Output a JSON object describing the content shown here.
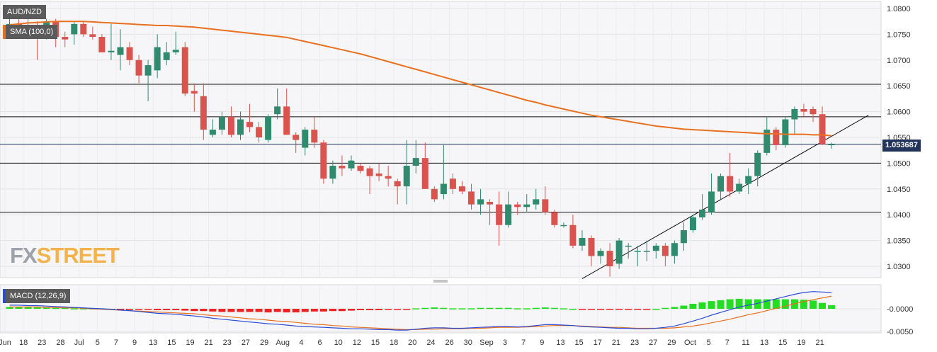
{
  "labels": {
    "symbol": "AUD/NZD",
    "sma_legend": "SMA (100,0)",
    "macd_legend": "MACD (12,26,9)",
    "last_price": "1.053687",
    "watermark_a": "FX",
    "watermark_b": "STREET"
  },
  "colors": {
    "up": "#2f8a6e",
    "down": "#d9534f",
    "sma": "#e8701f",
    "macd_line": "#2c4cd6",
    "signal_line": "#e8701f",
    "hist_pos": "#22dd22",
    "hist_neg": "#ee2222",
    "label_bg": "#5a5a5a",
    "price_tag_bg": "#22345c"
  },
  "chart_data": [
    {
      "type": "candlestick",
      "symbol": "AUD/NZD",
      "ylim": [
        1.0265,
        1.0805
      ],
      "yticks": [
        "1.0800",
        "1.0750",
        "1.0700",
        "1.0650",
        "1.0600",
        "1.0550",
        "1.0500",
        "1.0450",
        "1.0400",
        "1.0350",
        "1.0300"
      ],
      "xticks": [
        "Jun",
        "18",
        "23",
        "28",
        "Jul",
        "5",
        "7",
        "9",
        "13",
        "15",
        "19",
        "21",
        "23",
        "27",
        "29",
        "Aug",
        "4",
        "6",
        "10",
        "12",
        "15",
        "18",
        "20",
        "24",
        "26",
        "30",
        "Sep",
        "3",
        "7",
        "9",
        "13",
        "15",
        "17",
        "21",
        "23",
        "27",
        "29",
        "Oct",
        "5",
        "7",
        "11",
        "13",
        "15",
        "19",
        "21"
      ],
      "horizontal_levels": [
        1.0653,
        1.059,
        1.05,
        1.0405
      ],
      "last_price": 1.053687,
      "trendline": [
        {
          "i": 62,
          "v": 1.0276
        },
        {
          "i": 93,
          "v": 1.0593
        }
      ],
      "candles": [
        [
          1.0768,
          1.0795,
          1.076,
          1.077
        ],
        [
          1.077,
          1.0795,
          1.0755,
          1.0765
        ],
        [
          1.0765,
          1.0785,
          1.074,
          1.0755
        ],
        [
          1.0755,
          1.0775,
          1.07,
          1.075
        ],
        [
          1.075,
          1.078,
          1.074,
          1.0775
        ],
        [
          1.0775,
          1.078,
          1.0725,
          1.0745
        ],
        [
          1.0745,
          1.0755,
          1.0725,
          1.074
        ],
        [
          1.075,
          1.0775,
          1.073,
          1.077
        ],
        [
          1.077,
          1.0775,
          1.0745,
          1.075
        ],
        [
          1.075,
          1.0765,
          1.074,
          1.0745
        ],
        [
          1.0745,
          1.075,
          1.0715,
          1.0715
        ],
        [
          1.0715,
          1.077,
          1.07,
          1.0718
        ],
        [
          1.071,
          1.076,
          1.068,
          1.0725
        ],
        [
          1.0725,
          1.0735,
          1.069,
          1.07
        ],
        [
          1.07,
          1.071,
          1.0655,
          1.067
        ],
        [
          1.067,
          1.07,
          1.062,
          1.069
        ],
        [
          1.068,
          1.075,
          1.0665,
          1.0725
        ],
        [
          1.07,
          1.0735,
          1.069,
          1.0715
        ],
        [
          1.0715,
          1.0755,
          1.071,
          1.072
        ],
        [
          1.0725,
          1.0735,
          1.063,
          1.0635
        ],
        [
          1.064,
          1.0655,
          1.06,
          1.0635
        ],
        [
          1.063,
          1.0655,
          1.0545,
          1.0565
        ],
        [
          1.0555,
          1.0585,
          1.055,
          1.0565
        ],
        [
          1.0565,
          1.06,
          1.0555,
          1.059
        ],
        [
          1.059,
          1.061,
          1.055,
          1.0555
        ],
        [
          1.0555,
          1.06,
          1.0545,
          1.0585
        ],
        [
          1.058,
          1.0615,
          1.056,
          1.057
        ],
        [
          1.057,
          1.058,
          1.054,
          1.055
        ],
        [
          1.0545,
          1.0595,
          1.054,
          1.059
        ],
        [
          1.0595,
          1.0645,
          1.0585,
          1.061
        ],
        [
          1.061,
          1.0645,
          1.0555,
          1.0555
        ],
        [
          1.0555,
          1.056,
          1.052,
          1.0545
        ],
        [
          1.053,
          1.057,
          1.0515,
          1.0565
        ],
        [
          1.0565,
          1.059,
          1.053,
          1.054
        ],
        [
          1.054,
          1.0545,
          1.046,
          1.047
        ],
        [
          1.047,
          1.0505,
          1.046,
          1.0495
        ],
        [
          1.0495,
          1.0515,
          1.0475,
          1.049
        ],
        [
          1.049,
          1.0515,
          1.0485,
          1.0505
        ],
        [
          1.0495,
          1.05,
          1.048,
          1.0485
        ],
        [
          1.049,
          1.0495,
          1.044,
          1.0475
        ],
        [
          1.048,
          1.05,
          1.0465,
          1.0475
        ],
        [
          1.0475,
          1.0495,
          1.0455,
          1.047
        ],
        [
          1.0465,
          1.047,
          1.042,
          1.0455
        ],
        [
          1.0455,
          1.0545,
          1.042,
          1.0495
        ],
        [
          1.0495,
          1.0545,
          1.048,
          1.051
        ],
        [
          1.051,
          1.054,
          1.045,
          1.045
        ],
        [
          1.045,
          1.0455,
          1.0425,
          1.043
        ],
        [
          1.044,
          1.0535,
          1.043,
          1.046
        ],
        [
          1.047,
          1.048,
          1.044,
          1.045
        ],
        [
          1.0455,
          1.0465,
          1.044,
          1.0445
        ],
        [
          1.0445,
          1.046,
          1.041,
          1.042
        ],
        [
          1.042,
          1.045,
          1.04,
          1.043
        ],
        [
          1.0425,
          1.043,
          1.038,
          1.042
        ],
        [
          1.042,
          1.0445,
          1.034,
          1.038
        ],
        [
          1.038,
          1.0445,
          1.0375,
          1.042
        ],
        [
          1.042,
          1.0425,
          1.04,
          1.0415
        ],
        [
          1.0415,
          1.044,
          1.0405,
          1.042
        ],
        [
          1.042,
          1.045,
          1.041,
          1.043
        ],
        [
          1.043,
          1.0455,
          1.04,
          1.0405
        ],
        [
          1.0405,
          1.041,
          1.0375,
          1.038
        ],
        [
          1.038,
          1.0385,
          1.0375,
          1.038
        ],
        [
          1.038,
          1.04,
          1.0335,
          1.034
        ],
        [
          1.034,
          1.037,
          1.033,
          1.0355
        ],
        [
          1.0355,
          1.036,
          1.03,
          1.032
        ],
        [
          1.032,
          1.0335,
          1.0305,
          1.033
        ],
        [
          1.033,
          1.0345,
          1.028,
          1.03
        ],
        [
          1.0305,
          1.0355,
          1.0295,
          1.035
        ],
        [
          1.034,
          1.0345,
          1.0315,
          1.034
        ],
        [
          1.033,
          1.034,
          1.03,
          1.033
        ],
        [
          1.033,
          1.035,
          1.031,
          1.033
        ],
        [
          1.033,
          1.0345,
          1.0315,
          1.034
        ],
        [
          1.034,
          1.0345,
          1.03,
          1.032
        ],
        [
          1.032,
          1.035,
          1.0305,
          1.0345
        ],
        [
          1.0345,
          1.0385,
          1.033,
          1.037
        ],
        [
          1.037,
          1.04,
          1.0365,
          1.0395
        ],
        [
          1.0395,
          1.044,
          1.039,
          1.041
        ],
        [
          1.0405,
          1.048,
          1.04,
          1.0445
        ],
        [
          1.0445,
          1.048,
          1.043,
          1.0475
        ],
        [
          1.0475,
          1.052,
          1.0435,
          1.0445
        ],
        [
          1.0445,
          1.047,
          1.044,
          1.046
        ],
        [
          1.046,
          1.049,
          1.044,
          1.0475
        ],
        [
          1.0475,
          1.0525,
          1.0455,
          1.052
        ],
        [
          1.052,
          1.059,
          1.0515,
          1.0565
        ],
        [
          1.0565,
          1.057,
          1.0525,
          1.0535
        ],
        [
          1.0535,
          1.059,
          1.053,
          1.0585
        ],
        [
          1.0585,
          1.061,
          1.0555,
          1.0605
        ],
        [
          1.0605,
          1.0615,
          1.059,
          1.06
        ],
        [
          1.0605,
          1.061,
          1.058,
          1.0595
        ],
        [
          1.0595,
          1.061,
          1.0535,
          1.0537
        ],
        [
          1.0537,
          1.054,
          1.0528,
          1.0537
        ]
      ]
    },
    {
      "type": "line",
      "name": "SMA (100,0)",
      "values": [
        1.0768,
        1.077,
        1.0772,
        1.0773,
        1.0774,
        1.0775,
        1.0775,
        1.0775,
        1.0775,
        1.0774,
        1.0773,
        1.0772,
        1.0771,
        1.077,
        1.0769,
        1.0768,
        1.0767,
        1.0767,
        1.0766,
        1.0765,
        1.0764,
        1.0762,
        1.076,
        1.0758,
        1.0756,
        1.0754,
        1.0752,
        1.075,
        1.0748,
        1.0746,
        1.0744,
        1.074,
        1.0736,
        1.0732,
        1.0728,
        1.0724,
        1.072,
        1.0716,
        1.0712,
        1.0707,
        1.0702,
        1.0697,
        1.0692,
        1.0687,
        1.0682,
        1.0677,
        1.0672,
        1.0667,
        1.0662,
        1.0657,
        1.0652,
        1.0647,
        1.0642,
        1.0637,
        1.0632,
        1.0627,
        1.0622,
        1.0618,
        1.0613,
        1.0609,
        1.0605,
        1.0601,
        1.0597,
        1.0593,
        1.059,
        1.0587,
        1.0584,
        1.0581,
        1.0578,
        1.0575,
        1.0572,
        1.057,
        1.0568,
        1.0566,
        1.0565,
        1.0564,
        1.0563,
        1.0562,
        1.0561,
        1.056,
        1.0559,
        1.0558,
        1.0557,
        1.0557,
        1.0556,
        1.0556,
        1.0556,
        1.0555,
        1.0555,
        1.0553
      ]
    },
    {
      "type": "macd",
      "name": "MACD (12,26,9)",
      "ylim": [
        -0.0052,
        0.0048
      ],
      "yticks": [
        "-0.0000",
        "-0.0050"
      ],
      "macd": [
        0.0008,
        0.0008,
        0.0007,
        0.0007,
        0.0006,
        0.0005,
        0.0004,
        0.0003,
        0.0002,
        0.0001,
        0.0,
        -0.0001,
        -0.0003,
        -0.0004,
        -0.0006,
        -0.0008,
        -0.001,
        -0.0011,
        -0.0012,
        -0.0014,
        -0.0016,
        -0.0018,
        -0.0021,
        -0.0023,
        -0.0025,
        -0.0027,
        -0.0029,
        -0.0031,
        -0.0033,
        -0.0034,
        -0.0036,
        -0.0038,
        -0.0039,
        -0.004,
        -0.0041,
        -0.0042,
        -0.0043,
        -0.0044,
        -0.0044,
        -0.0045,
        -0.0046,
        -0.0046,
        -0.0047,
        -0.0047,
        -0.0045,
        -0.0043,
        -0.0042,
        -0.0042,
        -0.0043,
        -0.0043,
        -0.0042,
        -0.0041,
        -0.004,
        -0.0039,
        -0.0039,
        -0.004,
        -0.0039,
        -0.0037,
        -0.0035,
        -0.0035,
        -0.0036,
        -0.0037,
        -0.0039,
        -0.004,
        -0.0041,
        -0.0042,
        -0.0043,
        -0.0043,
        -0.0044,
        -0.0044,
        -0.0043,
        -0.0041,
        -0.0038,
        -0.0033,
        -0.0027,
        -0.0021,
        -0.0014,
        -0.0008,
        -0.0002,
        0.0004,
        0.0008,
        0.0012,
        0.0017,
        0.0022,
        0.0027,
        0.0032,
        0.0036,
        0.0038,
        0.0037,
        0.0036
      ],
      "signal": [
        0.0004,
        0.0004,
        0.0004,
        0.0004,
        0.0003,
        0.0003,
        0.0002,
        0.0002,
        0.0001,
        0.0,
        -0.0001,
        -0.0002,
        -0.0003,
        -0.0004,
        -0.0005,
        -0.0006,
        -0.0007,
        -0.0008,
        -0.0009,
        -0.001,
        -0.0011,
        -0.0013,
        -0.0015,
        -0.0016,
        -0.0018,
        -0.002,
        -0.0022,
        -0.0023,
        -0.0025,
        -0.0027,
        -0.0028,
        -0.003,
        -0.0032,
        -0.0034,
        -0.0035,
        -0.0037,
        -0.0038,
        -0.004,
        -0.0041,
        -0.0042,
        -0.0043,
        -0.0044,
        -0.0045,
        -0.0046,
        -0.0046,
        -0.0045,
        -0.0045,
        -0.0044,
        -0.0044,
        -0.0044,
        -0.0043,
        -0.0043,
        -0.0042,
        -0.0041,
        -0.0041,
        -0.0041,
        -0.004,
        -0.0039,
        -0.0038,
        -0.0037,
        -0.0037,
        -0.0037,
        -0.0038,
        -0.0039,
        -0.004,
        -0.0041,
        -0.0041,
        -0.0042,
        -0.0043,
        -0.0043,
        -0.0043,
        -0.0043,
        -0.0042,
        -0.004,
        -0.0038,
        -0.0035,
        -0.0031,
        -0.0027,
        -0.0023,
        -0.0018,
        -0.0013,
        -0.0009,
        -0.0004,
        0.0001,
        0.0006,
        0.0011,
        0.0016,
        0.002,
        0.0024,
        0.0028
      ],
      "histogram": [
        0.0004,
        0.0004,
        0.0004,
        0.0003,
        0.0003,
        0.0002,
        0.0002,
        0.0001,
        0.0001,
        0.0001,
        0.0001,
        0.0,
        -0.0001,
        -0.0001,
        -0.0002,
        -0.0002,
        -0.0003,
        -0.0003,
        -0.0003,
        -0.0004,
        -0.0005,
        -0.0005,
        -0.0006,
        -0.0007,
        -0.0007,
        -0.0007,
        -0.0007,
        -0.0007,
        -0.0008,
        -0.0007,
        -0.0008,
        -0.0008,
        -0.0007,
        -0.0006,
        -0.0006,
        -0.0005,
        -0.0005,
        -0.0004,
        -0.0003,
        -0.0003,
        -0.0003,
        -0.0002,
        -0.0002,
        -0.0001,
        0.0001,
        0.0002,
        0.0003,
        0.0002,
        0.0001,
        0.0001,
        0.0001,
        0.0002,
        0.0002,
        0.0002,
        0.0002,
        0.0001,
        0.0001,
        0.0002,
        0.0003,
        0.0002,
        0.0001,
        0.0,
        -0.0001,
        -0.0001,
        -0.0001,
        -0.0001,
        -0.0002,
        -0.0001,
        -0.0001,
        -0.0001,
        0.0,
        0.0002,
        0.0004,
        0.0007,
        0.0011,
        0.0014,
        0.0017,
        0.0019,
        0.0021,
        0.0022,
        0.0021,
        0.0021,
        0.0021,
        0.0021,
        0.0021,
        0.0021,
        0.002,
        0.0018,
        0.0013,
        0.0008
      ]
    }
  ]
}
